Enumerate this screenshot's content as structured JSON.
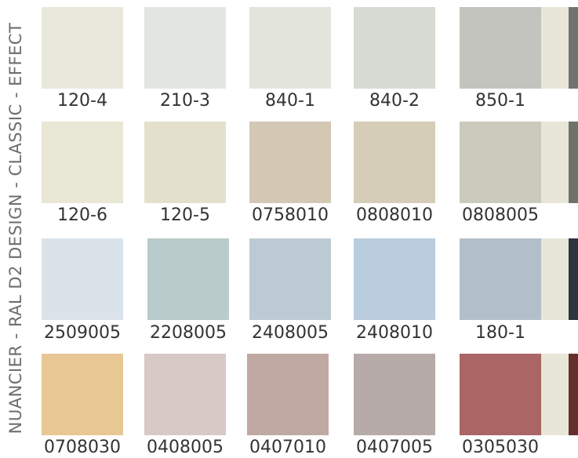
{
  "title": "NUANCIER - RAL D2 DESIGN - CLASSIC - EFFECT",
  "rows": [
    [
      {
        "code": "120-4",
        "color": "#e8e8dc"
      },
      {
        "code": "210-3",
        "color": "#e1e7e0"
      },
      {
        "code": "840-1",
        "color": "#e3e5dd"
      },
      {
        "code": "840-2",
        "color": "#d7d9d3"
      },
      {
        "code": "850-1",
        "color": "#c3c4bd",
        "strip_light": "#e7e6d8",
        "strip_dark": "#717370"
      }
    ],
    [
      {
        "code": "120-6",
        "color": "#e9e7d5"
      },
      {
        "code": "120-5",
        "color": "#e3e1cc"
      },
      {
        "code": "0758010",
        "color": "#d3c8b4"
      },
      {
        "code": "0808010",
        "color": "#d5cdb7"
      },
      {
        "code": "0808005",
        "color": "#cbcbbd",
        "strip_light": "#e7e6d8",
        "strip_dark": "#6f716b"
      }
    ],
    [
      {
        "code": "2509005",
        "color": "#dae2ea"
      },
      {
        "code": "2208005",
        "color": "#b9cbca"
      },
      {
        "code": "2408005",
        "color": "#bccbd3"
      },
      {
        "code": "2408010",
        "color": "#b9cdde"
      },
      {
        "code": "180-1",
        "color": "#b2bfcb",
        "strip_light": "#e7e6d8",
        "strip_dark": "#2c3540"
      }
    ],
    [
      {
        "code": "0708030",
        "color": "#e8c794"
      },
      {
        "code": "0408005",
        "color": "#d6c9c6"
      },
      {
        "code": "0407010",
        "color": "#c1a9a3"
      },
      {
        "code": "0407005",
        "color": "#b6aba8"
      },
      {
        "code": "0305030",
        "color": "#a96664",
        "strip_light": "#e7e6d8",
        "strip_dark": "#652f2c"
      }
    ]
  ]
}
